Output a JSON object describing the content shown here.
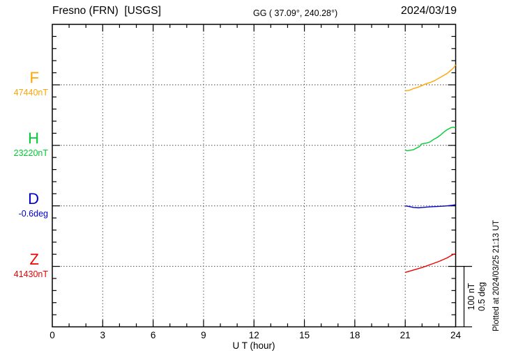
{
  "header": {
    "title": "Fresno (FRN)  [USGS]",
    "coords": "GG ( 37.09°, 240.28°)",
    "date": "2024/03/19"
  },
  "channels": [
    {
      "label": "F",
      "value_label": "47440nT",
      "color": "#FFA500"
    },
    {
      "label": "H",
      "value_label": "23220nT",
      "color": "#00CC33"
    },
    {
      "label": "D",
      "value_label": "-0.6deg",
      "color": "#0000CC"
    },
    {
      "label": "Z",
      "value_label": "41430nT",
      "color": "#EE0000"
    }
  ],
  "x_axis": {
    "label": "U T (hour)"
  },
  "scale_bar": {
    "line1": "100 nT",
    "line2": "0.5 deg"
  },
  "footer_note": "Plotted at 2024/03/25 21:13 UT",
  "chart_data": {
    "type": "line",
    "title": "Fresno (FRN) [USGS] magnetogram 2024/03/19",
    "xlabel": "U T (hour)",
    "x_range": [
      0,
      24
    ],
    "x_major_tick_step": 3,
    "x_minor_tick_step": 1,
    "x_tick_labels": [
      "0",
      "3",
      "6",
      "9",
      "12",
      "15",
      "18",
      "21",
      "24"
    ],
    "y_rows": 25,
    "baseline_rows": [
      5,
      10,
      15,
      20
    ],
    "grid": "dotted vertical lines every 3 h, dotted horizontal line at each channel baseline",
    "scale_note": "5 rows = 100 nT for F/H/Z, 0.5 deg for D",
    "series": [
      {
        "name": "F",
        "units": "nT",
        "color": "#FFA500",
        "baseline_value": 47440,
        "per_division": 100,
        "points": [
          [
            21.0,
            47430
          ],
          [
            21.25,
            47431
          ],
          [
            21.5,
            47434
          ],
          [
            21.75,
            47436
          ],
          [
            22.0,
            47439
          ],
          [
            22.25,
            47442
          ],
          [
            22.5,
            47444
          ],
          [
            22.75,
            47447
          ],
          [
            23.0,
            47451
          ],
          [
            23.25,
            47455
          ],
          [
            23.5,
            47459
          ],
          [
            23.75,
            47465
          ],
          [
            23.9,
            47469
          ],
          [
            24.0,
            47473
          ]
        ]
      },
      {
        "name": "H",
        "units": "nT",
        "color": "#00CC33",
        "baseline_value": 23220,
        "per_division": 100,
        "points": [
          [
            21.0,
            23213
          ],
          [
            21.1,
            23211
          ],
          [
            21.3,
            23212
          ],
          [
            21.5,
            23213
          ],
          [
            21.7,
            23216
          ],
          [
            21.85,
            23218
          ],
          [
            21.95,
            23222
          ],
          [
            22.1,
            23223
          ],
          [
            22.3,
            23224
          ],
          [
            22.5,
            23226
          ],
          [
            22.7,
            23230
          ],
          [
            22.9,
            23233
          ],
          [
            23.1,
            23237
          ],
          [
            23.3,
            23242
          ],
          [
            23.5,
            23246
          ],
          [
            23.7,
            23249
          ],
          [
            23.85,
            23250
          ],
          [
            24.0,
            23249
          ]
        ]
      },
      {
        "name": "D",
        "units": "deg",
        "color": "#0000CC",
        "baseline_value": -0.6,
        "per_division": 0.5,
        "points": [
          [
            21.0,
            -0.6
          ],
          [
            21.2,
            -0.604
          ],
          [
            21.5,
            -0.614
          ],
          [
            21.8,
            -0.616
          ],
          [
            22.0,
            -0.614
          ],
          [
            22.3,
            -0.61
          ],
          [
            22.6,
            -0.607
          ],
          [
            22.9,
            -0.605
          ],
          [
            23.2,
            -0.603
          ],
          [
            23.5,
            -0.6
          ],
          [
            23.8,
            -0.595
          ],
          [
            24.0,
            -0.591
          ]
        ]
      },
      {
        "name": "Z",
        "units": "nT",
        "color": "#EE0000",
        "baseline_value": 41430,
        "per_division": 100,
        "points": [
          [
            21.0,
            41420
          ],
          [
            21.5,
            41424
          ],
          [
            22.0,
            41428
          ],
          [
            22.5,
            41433
          ],
          [
            23.0,
            41438
          ],
          [
            23.5,
            41444
          ],
          [
            23.8,
            41449
          ],
          [
            24.0,
            41451
          ]
        ]
      }
    ]
  }
}
